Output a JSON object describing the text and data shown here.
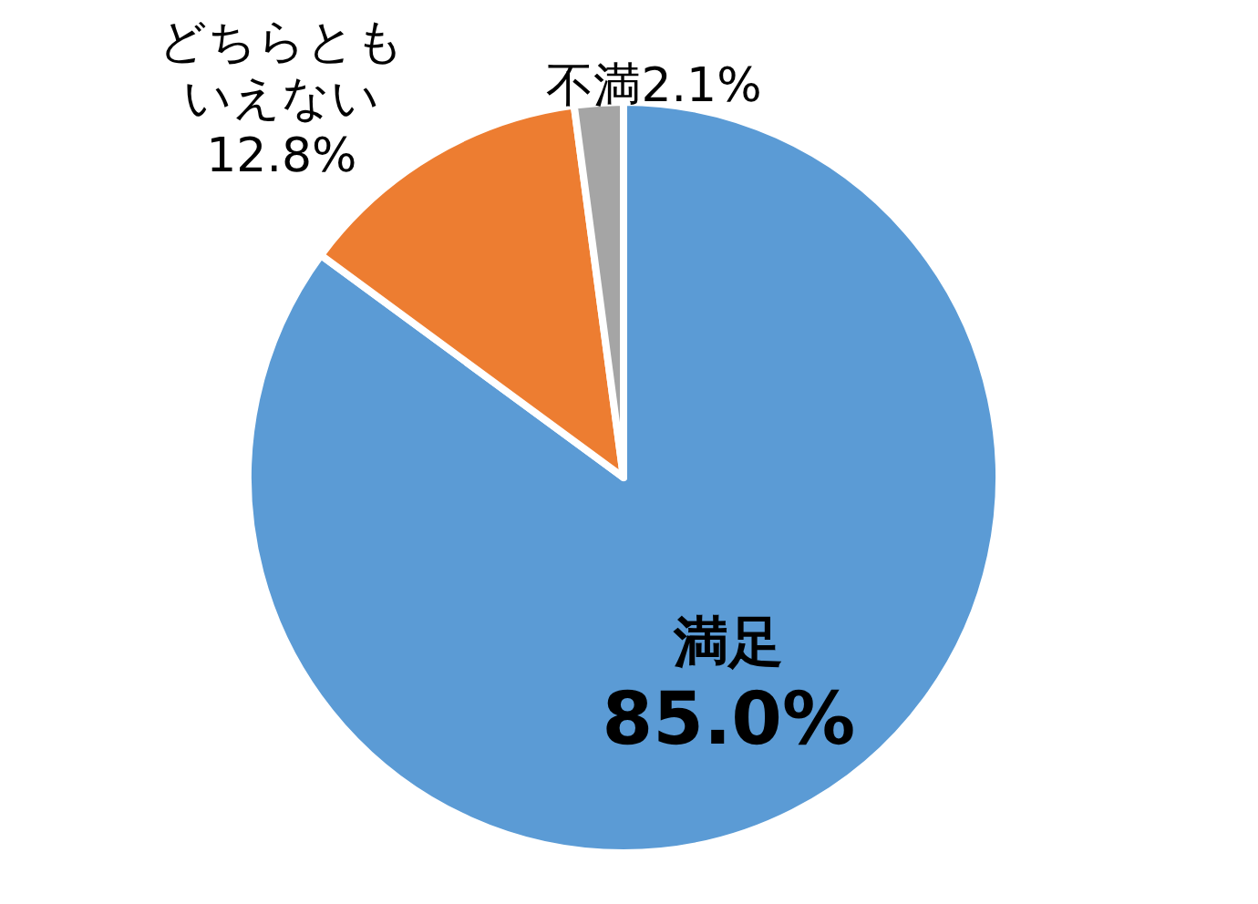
{
  "chart_data": {
    "type": "pie",
    "categories": [
      "満足",
      "どちらともいえない",
      "不満"
    ],
    "values": [
      85.0,
      12.8,
      2.1
    ],
    "colors": [
      "#5b9bd5",
      "#ed7d31",
      "#a5a5a5"
    ],
    "value_labels": [
      "85.0%",
      "12.8%",
      "2.1%"
    ]
  }
}
